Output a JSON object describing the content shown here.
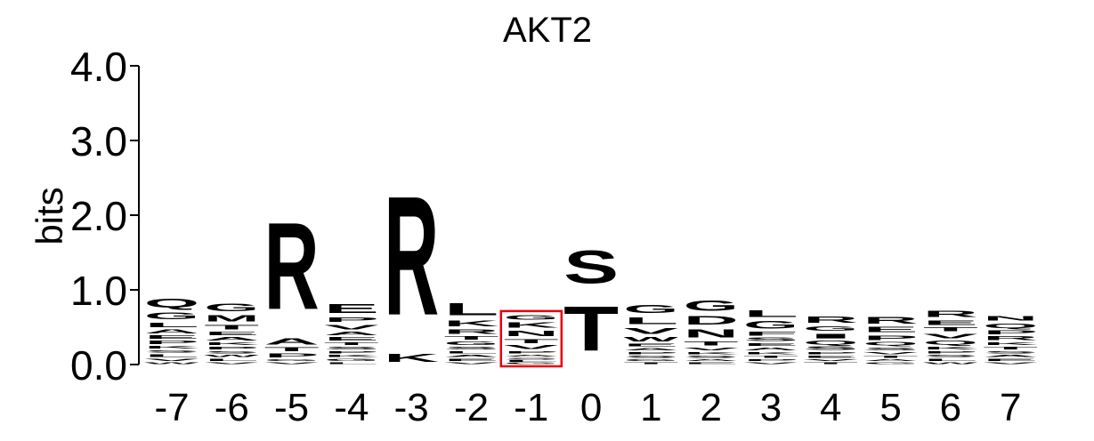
{
  "chart_data": {
    "type": "sequence-logo",
    "title": "AKT2",
    "ylabel": "bits",
    "ylim": [
      0,
      4
    ],
    "yticks": [
      "0.0",
      "1.0",
      "2.0",
      "3.0",
      "4.0"
    ],
    "ytick_values": [
      0,
      1,
      2,
      3,
      4
    ],
    "positions": [
      "-7",
      "-6",
      "-5",
      "-4",
      "-3",
      "-2",
      "-1",
      "0",
      "1",
      "2",
      "3",
      "4",
      "5",
      "6",
      "7"
    ],
    "highlight_position": "-1",
    "colors": {
      "basic": "#0047c7",
      "acidic": "#c8003c",
      "polar": "#0a8a43",
      "amide": "#7a0c9c",
      "hydrophobic": "#262626",
      "highlight": "#e8000b"
    },
    "residue_colors": {
      "R": "basic",
      "K": "basic",
      "H": "basic",
      "D": "acidic",
      "E": "acidic",
      "S": "polar",
      "T": "polar",
      "G": "polar",
      "Y": "polar",
      "C": "polar",
      "N": "amide",
      "Q": "amide",
      "A": "hydrophobic",
      "V": "hydrophobic",
      "L": "hydrophobic",
      "I": "hydrophobic",
      "P": "hydrophobic",
      "W": "hydrophobic",
      "F": "hydrophobic",
      "M": "hydrophobic"
    },
    "stacks": [
      [
        [
          "W",
          0.04
        ],
        [
          "V",
          0.05
        ],
        [
          "L",
          0.06
        ],
        [
          "S",
          0.05
        ],
        [
          "K",
          0.06
        ],
        [
          "P",
          0.07
        ],
        [
          "E",
          0.07
        ],
        [
          "A",
          0.08
        ],
        [
          "L",
          0.1
        ],
        [
          "G",
          0.15
        ],
        [
          "Q",
          0.18
        ]
      ],
      [
        [
          "V",
          0.04
        ],
        [
          "L",
          0.05
        ],
        [
          "W",
          0.05
        ],
        [
          "S",
          0.05
        ],
        [
          "P",
          0.06
        ],
        [
          "K",
          0.06
        ],
        [
          "A",
          0.07
        ],
        [
          "E",
          0.07
        ],
        [
          "T",
          0.1
        ],
        [
          "M",
          0.13
        ],
        [
          "G",
          0.16
        ]
      ],
      [
        [
          "V",
          0.04
        ],
        [
          "G",
          0.04
        ],
        [
          "P",
          0.08
        ],
        [
          "T",
          0.08
        ],
        [
          "A",
          0.14
        ],
        [
          "R",
          1.86
        ]
      ],
      [
        [
          "L",
          0.04
        ],
        [
          "G",
          0.05
        ],
        [
          "K",
          0.05
        ],
        [
          "P",
          0.05
        ],
        [
          "S",
          0.06
        ],
        [
          "T",
          0.06
        ],
        [
          "E",
          0.07
        ],
        [
          "A",
          0.07
        ],
        [
          "V",
          0.1
        ],
        [
          "P",
          0.1
        ],
        [
          "E",
          0.2
        ]
      ],
      [
        [
          "K",
          0.17
        ],
        [
          "R",
          2.55
        ]
      ],
      [
        [
          "V",
          0.04
        ],
        [
          "E",
          0.05
        ],
        [
          "A",
          0.05
        ],
        [
          "L",
          0.05
        ],
        [
          "S",
          0.06
        ],
        [
          "G",
          0.07
        ],
        [
          "T",
          0.07
        ],
        [
          "R",
          0.1
        ],
        [
          "K",
          0.12
        ],
        [
          "L",
          0.26
        ]
      ],
      [
        [
          "G",
          0.03
        ],
        [
          "L",
          0.03
        ],
        [
          "S",
          0.04
        ],
        [
          "A",
          0.04
        ],
        [
          "P",
          0.05
        ],
        [
          "V",
          0.08
        ],
        [
          "T",
          0.09
        ],
        [
          "N",
          0.11
        ],
        [
          "K",
          0.11
        ],
        [
          "G",
          0.1
        ]
      ],
      [
        [
          "T",
          0.95
        ],
        [
          "S",
          0.7
        ]
      ],
      [
        [
          "T",
          0.04
        ],
        [
          "G",
          0.04
        ],
        [
          "S",
          0.05
        ],
        [
          "P",
          0.05
        ],
        [
          "A",
          0.05
        ],
        [
          "E",
          0.06
        ],
        [
          "W",
          0.1
        ],
        [
          "V",
          0.12
        ],
        [
          "L",
          0.15
        ],
        [
          "G",
          0.17
        ]
      ],
      [
        [
          "E",
          0.04
        ],
        [
          "A",
          0.04
        ],
        [
          "S",
          0.05
        ],
        [
          "K",
          0.05
        ],
        [
          "V",
          0.06
        ],
        [
          "T",
          0.09
        ],
        [
          "N",
          0.17
        ],
        [
          "D",
          0.18
        ],
        [
          "G",
          0.22
        ]
      ],
      [
        [
          "V",
          0.04
        ],
        [
          "P",
          0.04
        ],
        [
          "T",
          0.05
        ],
        [
          "K",
          0.05
        ],
        [
          "A",
          0.06
        ],
        [
          "E",
          0.06
        ],
        [
          "S",
          0.07
        ],
        [
          "F",
          0.08
        ],
        [
          "G",
          0.16
        ],
        [
          "L",
          0.15
        ]
      ],
      [
        [
          "T",
          0.04
        ],
        [
          "V",
          0.04
        ],
        [
          "E",
          0.05
        ],
        [
          "P",
          0.05
        ],
        [
          "S",
          0.07
        ],
        [
          "Q",
          0.08
        ],
        [
          "I",
          0.1
        ],
        [
          "G",
          0.1
        ],
        [
          "R",
          0.14
        ]
      ],
      [
        [
          "G",
          0.04
        ],
        [
          "A",
          0.04
        ],
        [
          "T",
          0.05
        ],
        [
          "V",
          0.05
        ],
        [
          "S",
          0.06
        ],
        [
          "Q",
          0.07
        ],
        [
          "P",
          0.1
        ],
        [
          "E",
          0.11
        ],
        [
          "R",
          0.15
        ]
      ],
      [
        [
          "W",
          0.04
        ],
        [
          "L",
          0.05
        ],
        [
          "S",
          0.05
        ],
        [
          "P",
          0.05
        ],
        [
          "K",
          0.06
        ],
        [
          "Q",
          0.08
        ],
        [
          "V",
          0.1
        ],
        [
          "T",
          0.08
        ],
        [
          "E",
          0.1
        ],
        [
          "R",
          0.14
        ]
      ],
      [
        [
          "V",
          0.04
        ],
        [
          "E",
          0.05
        ],
        [
          "A",
          0.05
        ],
        [
          "S",
          0.05
        ],
        [
          "T",
          0.06
        ],
        [
          "K",
          0.06
        ],
        [
          "R",
          0.08
        ],
        [
          "P",
          0.08
        ],
        [
          "Q",
          0.1
        ],
        [
          "N",
          0.1
        ]
      ]
    ]
  }
}
